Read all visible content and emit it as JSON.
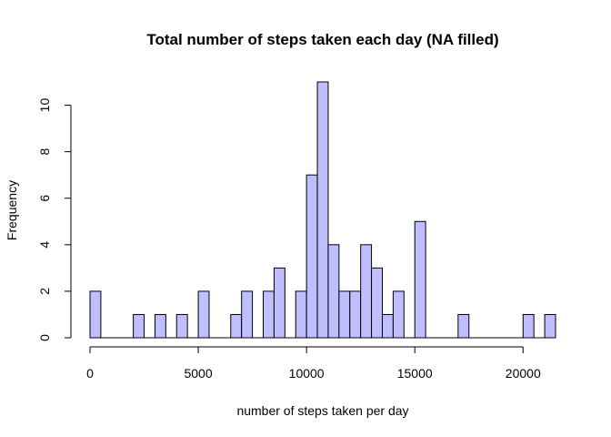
{
  "chart_data": {
    "type": "bar",
    "title": "Total number of steps taken each day  (NA filled)",
    "xlabel": "number of steps taken per day",
    "ylabel": "Frequency",
    "bin_width": 500,
    "bins_start": [
      0,
      500,
      1000,
      1500,
      2000,
      2500,
      3000,
      3500,
      4000,
      4500,
      5000,
      5500,
      6000,
      6500,
      7000,
      7500,
      8000,
      8500,
      9000,
      9500,
      10000,
      10500,
      11000,
      11500,
      12000,
      12500,
      13000,
      13500,
      14000,
      14500,
      15000,
      15500,
      16000,
      16500,
      17000,
      17500,
      18000,
      18500,
      19000,
      19500,
      20000,
      20500,
      21000
    ],
    "values": [
      2,
      0,
      0,
      0,
      1,
      0,
      1,
      0,
      1,
      0,
      2,
      0,
      0,
      1,
      2,
      0,
      2,
      3,
      0,
      2,
      7,
      11,
      4,
      2,
      2,
      4,
      3,
      1,
      2,
      0,
      5,
      0,
      0,
      0,
      1,
      0,
      0,
      0,
      0,
      0,
      1,
      0,
      1
    ],
    "xlim": [
      0,
      21500
    ],
    "ylim": [
      0,
      11
    ],
    "x_ticks": [
      0,
      5000,
      10000,
      15000,
      20000
    ],
    "y_ticks": [
      0,
      2,
      4,
      6,
      8,
      10
    ],
    "bar_color": "#bfbfff",
    "grid": false
  }
}
